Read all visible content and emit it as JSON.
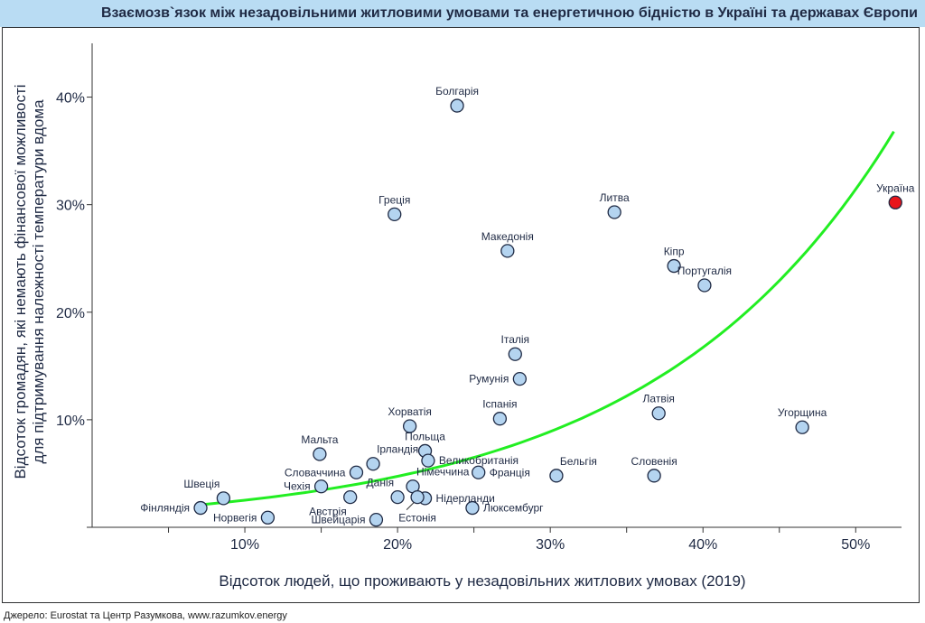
{
  "title": "Взаємозв`язок між незадовільними житловими умовами та енергетичною бідністю в Україні та державах Європи",
  "source": "Джерело: Eurostat та Центр Разумкова, www.razumkov.energy",
  "colors": {
    "title_bar": "#b9dcf3",
    "point_fill": "#b4d4f0",
    "point_stroke": "#1f2a44",
    "highlight_fill": "#e8151b",
    "highlight_label": "#e8151b",
    "trend": "#22ee22"
  },
  "chart_data": {
    "type": "scatter",
    "xlabel": "Відсоток людей, що проживають у незадовільних житлових умовах (2019)",
    "ylabel_lines": [
      "Відсоток громадян, які немають фінансової можливості",
      "для підтримування належності температури вдома"
    ],
    "xlim": [
      0,
      53
    ],
    "ylim": [
      0,
      45
    ],
    "x_ticks": [
      5,
      10,
      15,
      20,
      25,
      30,
      35,
      40,
      45,
      50
    ],
    "x_tick_labels": [
      {
        "value": 10,
        "label": "10%"
      },
      {
        "value": 20,
        "label": "20%"
      },
      {
        "value": 30,
        "label": "30%"
      },
      {
        "value": 40,
        "label": "40%"
      },
      {
        "value": 50,
        "label": "50%"
      }
    ],
    "y_ticks": [
      0,
      10,
      20,
      30,
      40
    ],
    "y_tick_labels": [
      {
        "value": 10,
        "label": "10%"
      },
      {
        "value": 20,
        "label": "20%"
      },
      {
        "value": 30,
        "label": "30%"
      },
      {
        "value": 40,
        "label": "40%"
      }
    ],
    "points": [
      {
        "name": "Болгарія",
        "x": 23.9,
        "y": 39.2,
        "label_pos": "above"
      },
      {
        "name": "Греція",
        "x": 19.8,
        "y": 29.1,
        "label_pos": "above"
      },
      {
        "name": "Литва",
        "x": 34.2,
        "y": 29.3,
        "label_pos": "above"
      },
      {
        "name": "Македонія",
        "x": 27.2,
        "y": 25.7,
        "label_pos": "above"
      },
      {
        "name": "Кіпр",
        "x": 38.1,
        "y": 24.3,
        "label_pos": "above"
      },
      {
        "name": "Португалія",
        "x": 40.1,
        "y": 22.5,
        "label_pos": "above"
      },
      {
        "name": "Україна",
        "x": 52.6,
        "y": 30.2,
        "label_pos": "above",
        "highlight": true
      },
      {
        "name": "Італія",
        "x": 27.7,
        "y": 16.1,
        "label_pos": "above"
      },
      {
        "name": "Румунія",
        "x": 28.0,
        "y": 13.8,
        "label_pos": "left"
      },
      {
        "name": "Іспанія",
        "x": 26.7,
        "y": 10.1,
        "label_pos": "above"
      },
      {
        "name": "Латвія",
        "x": 37.1,
        "y": 10.6,
        "label_pos": "above"
      },
      {
        "name": "Угорщина",
        "x": 46.5,
        "y": 9.3,
        "label_pos": "above"
      },
      {
        "name": "Хорватія",
        "x": 20.8,
        "y": 9.4,
        "label_pos": "above"
      },
      {
        "name": "Мальта",
        "x": 14.9,
        "y": 6.8,
        "label_pos": "above"
      },
      {
        "name": "Ірландія",
        "x": 18.4,
        "y": 5.9,
        "label_pos": "above-right"
      },
      {
        "name": "Польща",
        "x": 21.8,
        "y": 7.1,
        "label_pos": "above"
      },
      {
        "name": "Великобританія",
        "x": 22.0,
        "y": 6.2,
        "label_pos": "right"
      },
      {
        "name": "Словаччина",
        "x": 17.3,
        "y": 5.1,
        "label_pos": "left"
      },
      {
        "name": "Франція",
        "x": 25.3,
        "y": 5.1,
        "label_pos": "right"
      },
      {
        "name": "Бельгія",
        "x": 30.4,
        "y": 4.8,
        "label_pos": "above-right"
      },
      {
        "name": "Словенія",
        "x": 36.8,
        "y": 4.8,
        "label_pos": "above"
      },
      {
        "name": "Швеція",
        "x": 8.6,
        "y": 2.7,
        "label_pos": "above-left"
      },
      {
        "name": "Чехія",
        "x": 15.0,
        "y": 3.8,
        "label_pos": "left"
      },
      {
        "name": "Німеччина",
        "x": 21.0,
        "y": 3.8,
        "label_pos": "above-right"
      },
      {
        "name": "Данія",
        "x": 20.0,
        "y": 2.8,
        "label_pos": "above-left"
      },
      {
        "name": "Нідерланди",
        "x": 21.8,
        "y": 2.7,
        "label_pos": "right"
      },
      {
        "name": "Естонія",
        "x": 21.3,
        "y": 2.8,
        "label_pos": "below-leader"
      },
      {
        "name": "Австрія",
        "x": 16.9,
        "y": 2.8,
        "label_pos": "below-left"
      },
      {
        "name": "Фінляндія",
        "x": 7.1,
        "y": 1.8,
        "label_pos": "left"
      },
      {
        "name": "Люксембург",
        "x": 24.9,
        "y": 1.8,
        "label_pos": "right"
      },
      {
        "name": "Норвегія",
        "x": 11.5,
        "y": 0.9,
        "label_pos": "left"
      },
      {
        "name": "Швейцарія",
        "x": 18.6,
        "y": 0.7,
        "label_pos": "left"
      }
    ],
    "trendline": {
      "type": "exponential",
      "x_range": [
        7.1,
        52.5
      ],
      "y_range": [
        2.1,
        36.8
      ]
    }
  }
}
